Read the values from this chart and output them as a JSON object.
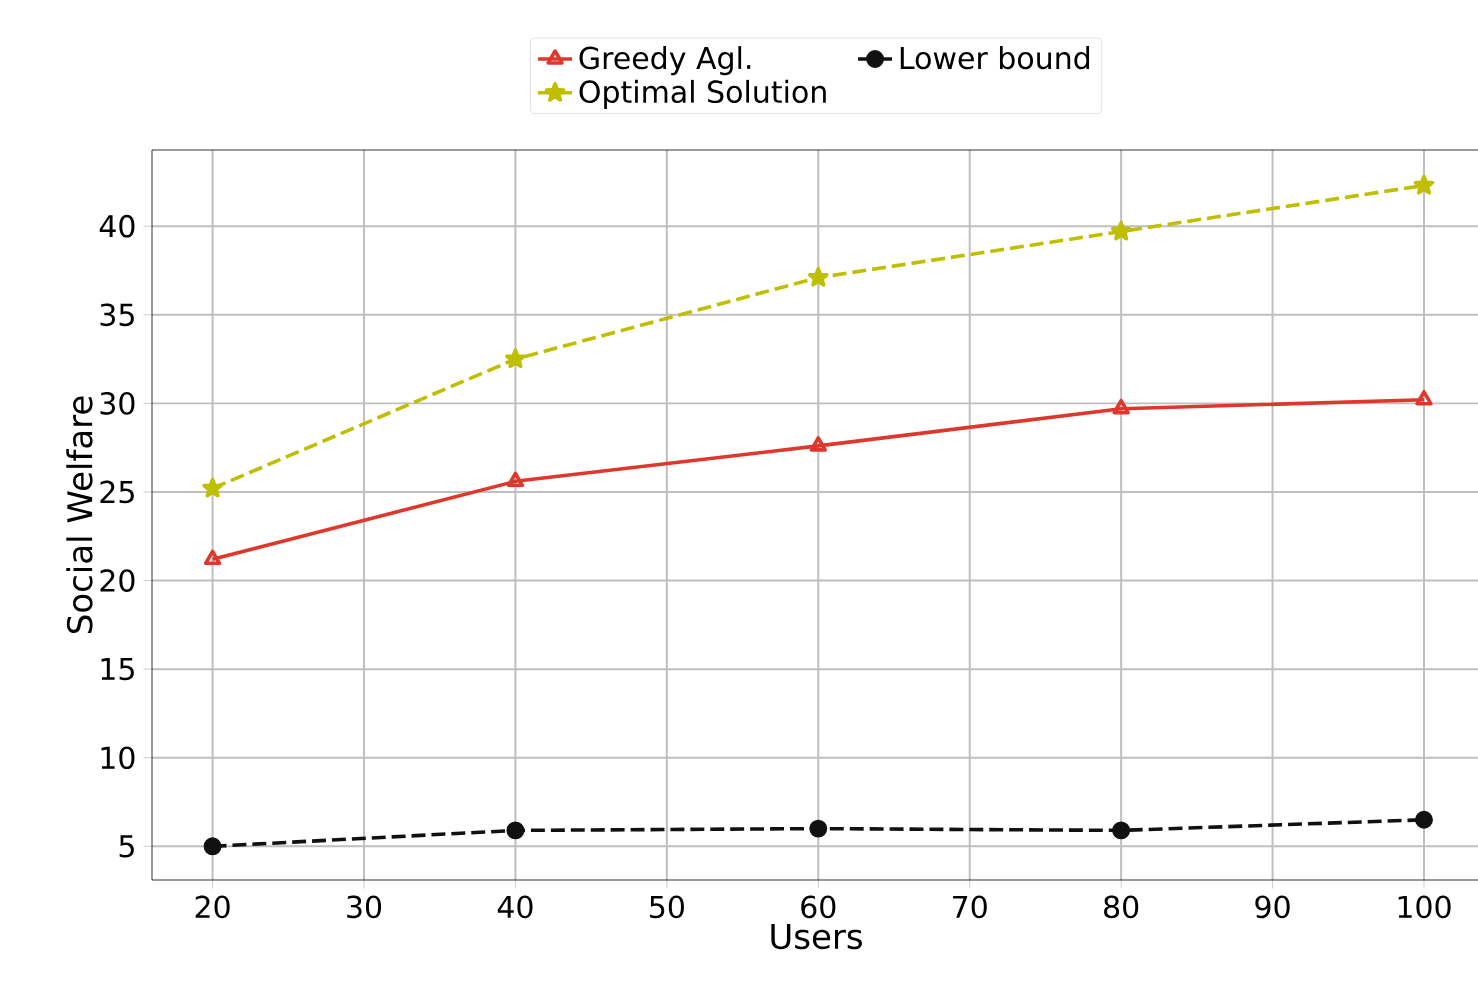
{
  "chart_data": {
    "type": "line",
    "xlabel": "Users",
    "ylabel": "Social Welfare",
    "x": [
      20,
      40,
      60,
      80,
      100
    ],
    "series": [
      {
        "name": "Greedy Agl.",
        "color": "#e0372c",
        "marker": "triangle",
        "line_style": "solid",
        "values": [
          21.2,
          25.6,
          27.6,
          29.7,
          30.2
        ]
      },
      {
        "name": "Optimal Solution",
        "color": "#bfbf00",
        "marker": "star",
        "line_style": "dashed",
        "values": [
          25.2,
          32.5,
          37.1,
          39.7,
          42.3
        ]
      },
      {
        "name": "Lower bound",
        "color": "#111111",
        "marker": "circle",
        "line_style": "dashed",
        "values": [
          5.0,
          5.9,
          6.0,
          5.9,
          6.5
        ]
      }
    ],
    "xlim": [
      16,
      103.7
    ],
    "ylim": [
      3.1,
      44.3
    ],
    "xticks": [
      20,
      30,
      40,
      50,
      60,
      70,
      80,
      90,
      100
    ],
    "yticks": [
      5,
      10,
      15,
      20,
      25,
      30,
      35,
      40
    ],
    "grid": true,
    "legend": "top"
  }
}
